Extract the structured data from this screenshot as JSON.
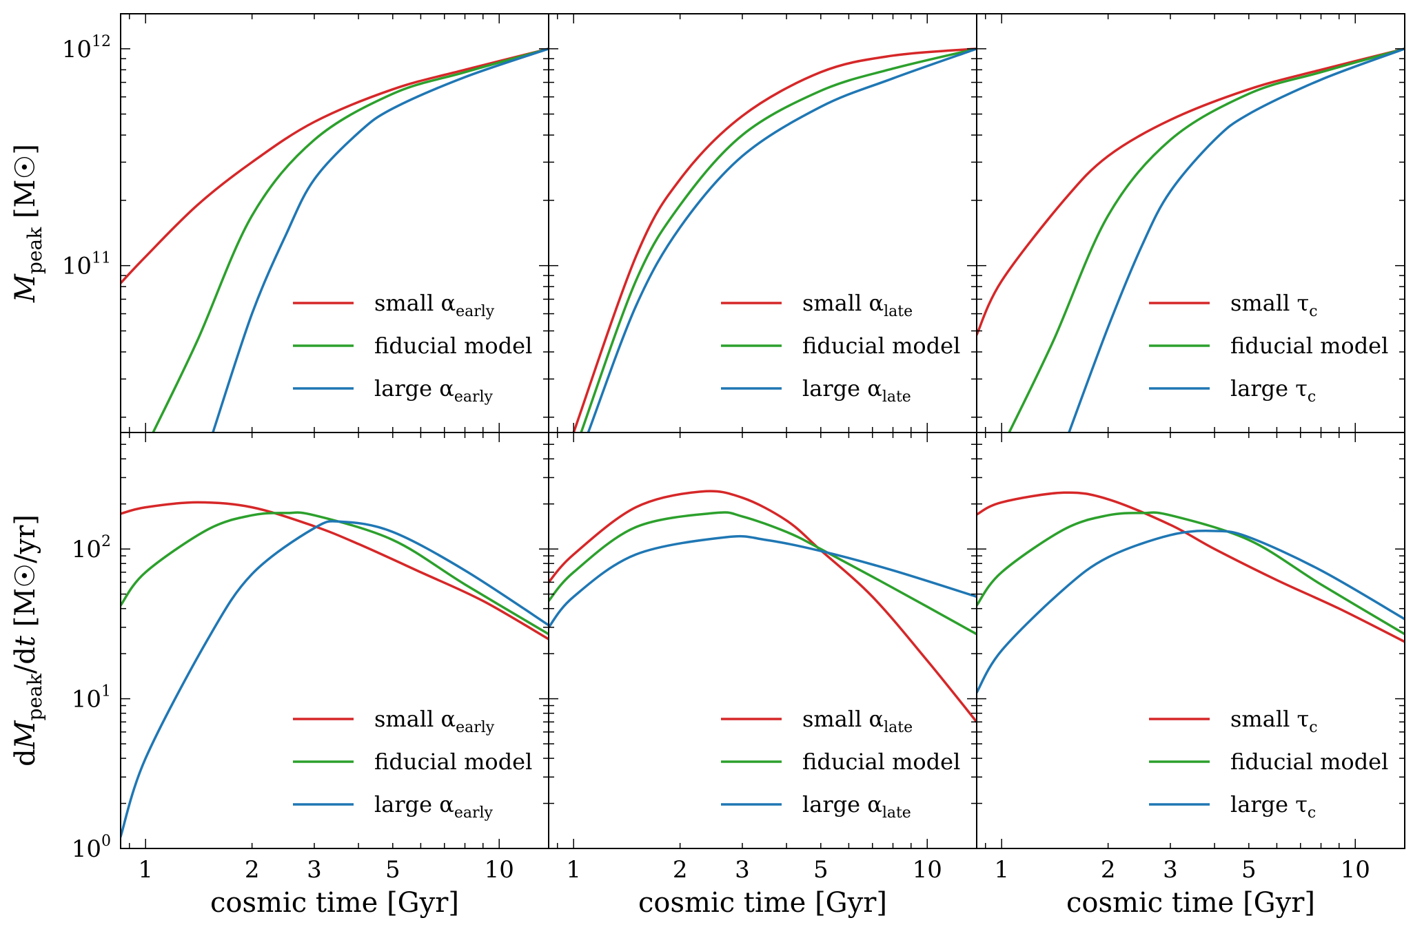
{
  "chart_data": [
    {
      "type": "line",
      "panel": "top-left",
      "ylabel_main": "M",
      "ylabel_sub": "peak",
      "ylabel_unit": "[M☉]",
      "xlabel": "",
      "xscale": "log",
      "yscale": "log",
      "xlim": [
        0.85,
        13.8
      ],
      "ylim": [
        17000000000,
        1450000000000
      ],
      "y_ticks": [
        {
          "v": 100000000000,
          "base": "10",
          "exp": "11"
        },
        {
          "v": 1000000000000,
          "base": "10",
          "exp": "12"
        }
      ],
      "legend_position": "lower right",
      "series": [
        {
          "legend_main": "small α",
          "legend_sub": "early",
          "color": "#d62728",
          "x": [
            0.85,
            1,
            1.4,
            2,
            3,
            5,
            8,
            13.8
          ],
          "y": [
            83000000000,
            110000000000,
            190000000000,
            300000000000,
            460000000000,
            650000000000,
            800000000000,
            1000000000000
          ]
        },
        {
          "legend_main": "fiducial model",
          "legend_sub": "",
          "color": "#2ca02c",
          "x": [
            1.05,
            1.4,
            2,
            3,
            5,
            8,
            13.8
          ],
          "y": [
            17000000000,
            45000000000,
            170000000000,
            380000000000,
            620000000000,
            780000000000,
            1000000000000
          ]
        },
        {
          "legend_main": "large α",
          "legend_sub": "early",
          "color": "#1f77b4",
          "x": [
            1.55,
            2,
            2.5,
            3,
            4,
            5,
            8,
            13.8
          ],
          "y": [
            17000000000,
            60000000000,
            140000000000,
            250000000000,
            410000000000,
            530000000000,
            740000000000,
            1000000000000
          ]
        }
      ]
    },
    {
      "type": "line",
      "panel": "top-middle",
      "xlabel": "",
      "xscale": "log",
      "yscale": "log",
      "xlim": [
        0.85,
        13.8
      ],
      "ylim": [
        17000000000,
        1450000000000
      ],
      "legend_position": "lower right",
      "series": [
        {
          "legend_main": "small α",
          "legend_sub": "late",
          "color": "#d62728",
          "x": [
            1,
            1.5,
            2,
            3,
            5,
            8,
            13.8
          ],
          "y": [
            17000000000,
            110000000000,
            250000000000,
            490000000000,
            780000000000,
            930000000000,
            1000000000000
          ]
        },
        {
          "legend_main": "fiducial model",
          "legend_sub": "",
          "color": "#2ca02c",
          "x": [
            1.05,
            1.5,
            2,
            3,
            5,
            8,
            13.8
          ],
          "y": [
            17000000000,
            85000000000,
            190000000000,
            400000000000,
            640000000000,
            810000000000,
            1000000000000
          ]
        },
        {
          "legend_main": "large α",
          "legend_sub": "late",
          "color": "#1f77b4",
          "x": [
            1.1,
            1.5,
            2,
            3,
            5,
            8,
            13.8
          ],
          "y": [
            17000000000,
            65000000000,
            150000000000,
            320000000000,
            540000000000,
            730000000000,
            1000000000000
          ]
        }
      ]
    },
    {
      "type": "line",
      "panel": "top-right",
      "xlabel": "",
      "xscale": "log",
      "yscale": "log",
      "xlim": [
        0.85,
        13.8
      ],
      "ylim": [
        17000000000,
        1450000000000
      ],
      "legend_position": "lower right",
      "series": [
        {
          "legend_main": "small τ",
          "legend_sub": "c",
          "color": "#d62728",
          "x": [
            0.85,
            1,
            1.5,
            2,
            3,
            5,
            8,
            13.8
          ],
          "y": [
            48000000000,
            85000000000,
            200000000000,
            320000000000,
            470000000000,
            650000000000,
            800000000000,
            1000000000000
          ]
        },
        {
          "legend_main": "fiducial model",
          "legend_sub": "",
          "color": "#2ca02c",
          "x": [
            1.05,
            1.4,
            2,
            3,
            5,
            8,
            13.8
          ],
          "y": [
            17000000000,
            45000000000,
            170000000000,
            380000000000,
            620000000000,
            780000000000,
            1000000000000
          ]
        },
        {
          "legend_main": "large τ",
          "legend_sub": "c",
          "color": "#1f77b4",
          "x": [
            1.55,
            2,
            2.5,
            3,
            4,
            5,
            8,
            13.8
          ],
          "y": [
            17000000000,
            52000000000,
            125000000000,
            220000000000,
            380000000000,
            500000000000,
            720000000000,
            1000000000000
          ]
        }
      ]
    },
    {
      "type": "line",
      "panel": "bottom-left",
      "ylabel_pre": "d",
      "ylabel_main": "M",
      "ylabel_sub": "peak",
      "ylabel_post": "/d",
      "ylabel_var": "t",
      "ylabel_unit": "[M☉/yr]",
      "xlabel": "cosmic time [Gyr]",
      "xscale": "log",
      "yscale": "log",
      "xlim": [
        0.85,
        13.8
      ],
      "ylim": [
        1,
        600
      ],
      "x_ticks": [
        1,
        2,
        3,
        5,
        10
      ],
      "y_ticks": [
        {
          "v": 1,
          "base": "10",
          "exp": "0"
        },
        {
          "v": 10,
          "base": "10",
          "exp": "1"
        },
        {
          "v": 100,
          "base": "10",
          "exp": "2"
        }
      ],
      "legend_position": "lower right",
      "series": [
        {
          "legend_main": "small α",
          "legend_sub": "early",
          "color": "#d62728",
          "x": [
            0.85,
            1,
            1.4,
            2,
            3,
            4,
            6,
            9,
            13.8
          ],
          "y": [
            172,
            190,
            205,
            190,
            142,
            108,
            70,
            45,
            25
          ]
        },
        {
          "legend_main": "fiducial model",
          "legend_sub": "",
          "color": "#2ca02c",
          "x": [
            0.85,
            1,
            1.5,
            2,
            2.5,
            3,
            5,
            8,
            13.8
          ],
          "y": [
            42,
            70,
            135,
            168,
            174,
            168,
            115,
            58,
            27
          ]
        },
        {
          "legend_main": "large α",
          "legend_sub": "early",
          "color": "#1f77b4",
          "x": [
            0.85,
            1,
            1.5,
            2,
            3,
            3.6,
            5,
            8,
            13.8
          ],
          "y": [
            1.2,
            4,
            25,
            68,
            138,
            152,
            130,
            72,
            31
          ]
        }
      ]
    },
    {
      "type": "line",
      "panel": "bottom-middle",
      "xlabel": "cosmic time [Gyr]",
      "xscale": "log",
      "yscale": "log",
      "xlim": [
        0.85,
        13.8
      ],
      "ylim": [
        1,
        600
      ],
      "x_ticks": [
        1,
        2,
        3,
        5,
        10
      ],
      "legend_position": "lower right",
      "series": [
        {
          "legend_main": "small α",
          "legend_sub": "late",
          "color": "#d62728",
          "x": [
            0.85,
            1,
            1.5,
            2.3,
            3,
            4,
            5,
            7,
            10,
            13.8
          ],
          "y": [
            60,
            92,
            190,
            242,
            220,
            155,
            98,
            48,
            18,
            7
          ]
        },
        {
          "legend_main": "fiducial model",
          "legend_sub": "",
          "color": "#2ca02c",
          "x": [
            0.85,
            1,
            1.5,
            2.5,
            3,
            4,
            5,
            8,
            13.8
          ],
          "y": [
            45,
            70,
            140,
            174,
            165,
            130,
            100,
            55,
            27
          ]
        },
        {
          "legend_main": "large α",
          "legend_sub": "late",
          "color": "#1f77b4",
          "x": [
            0.85,
            1,
            1.5,
            2.7,
            3.5,
            5,
            8,
            13.8
          ],
          "y": [
            30,
            48,
            92,
            120,
            115,
            97,
            72,
            48
          ]
        }
      ]
    },
    {
      "type": "line",
      "panel": "bottom-right",
      "xlabel": "cosmic time [Gyr]",
      "xscale": "log",
      "yscale": "log",
      "xlim": [
        0.85,
        13.8
      ],
      "ylim": [
        1,
        600
      ],
      "x_ticks": [
        1,
        2,
        3,
        5,
        10
      ],
      "legend_position": "lower right",
      "series": [
        {
          "legend_main": "small τ",
          "legend_sub": "c",
          "color": "#d62728",
          "x": [
            0.85,
            1,
            1.5,
            2,
            3,
            4,
            6,
            9,
            13.8
          ],
          "y": [
            170,
            205,
            238,
            215,
            145,
            100,
            62,
            40,
            24
          ]
        },
        {
          "legend_main": "fiducial model",
          "legend_sub": "",
          "color": "#2ca02c",
          "x": [
            0.85,
            1,
            1.5,
            2,
            2.5,
            3,
            5,
            8,
            13.8
          ],
          "y": [
            42,
            70,
            135,
            168,
            174,
            168,
            115,
            58,
            27
          ]
        },
        {
          "legend_main": "large τ",
          "legend_sub": "c",
          "color": "#1f77b4",
          "x": [
            0.85,
            1,
            1.5,
            2,
            3,
            4,
            5,
            8,
            13.8
          ],
          "y": [
            11,
            21,
            54,
            88,
            124,
            132,
            120,
            72,
            34
          ]
        }
      ]
    }
  ]
}
